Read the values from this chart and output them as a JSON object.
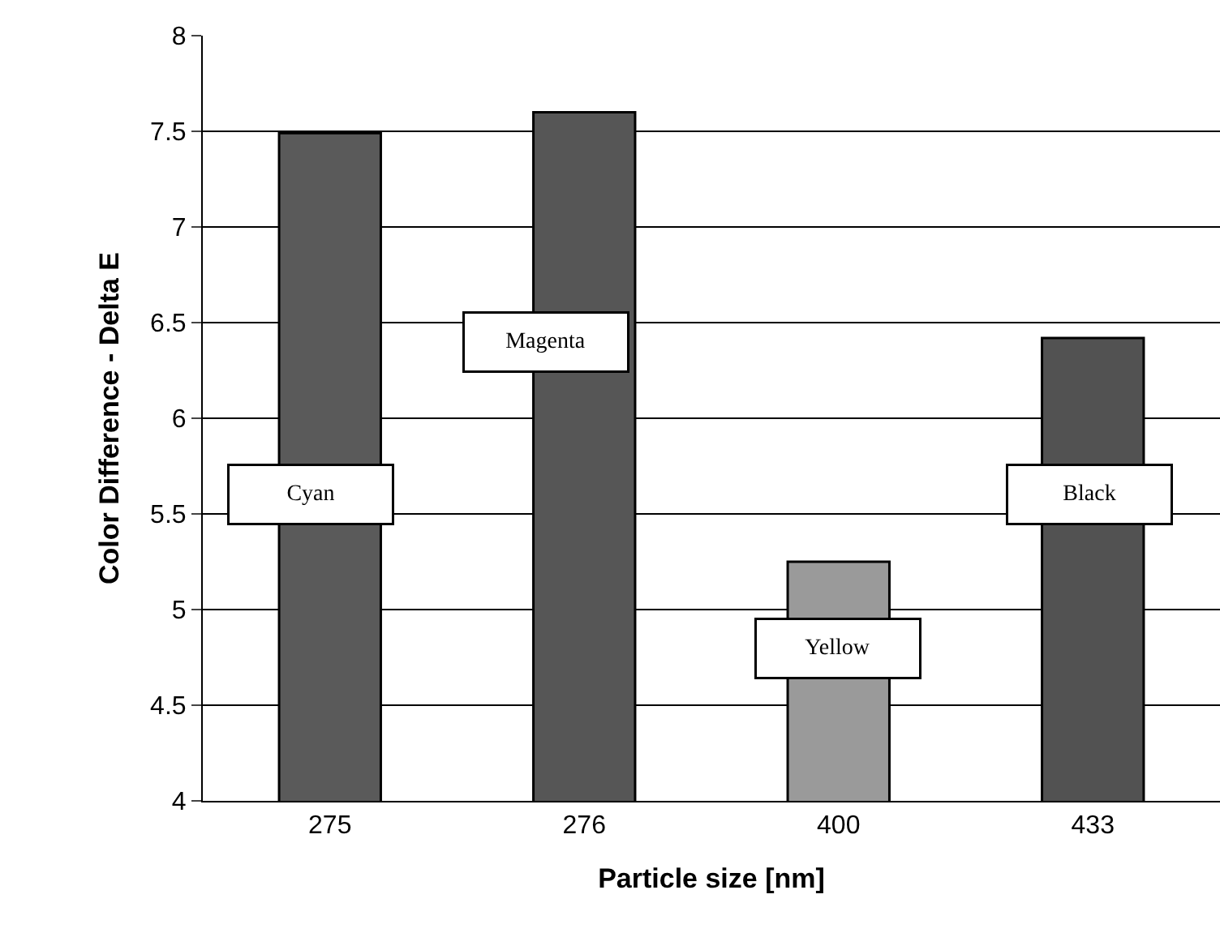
{
  "chart_data": {
    "type": "bar",
    "xlabel": "Particle size [nm]",
    "ylabel": "Color Difference - Delta E",
    "categories": [
      "275",
      "276",
      "400",
      "433"
    ],
    "series": [
      {
        "name": "Cyan",
        "color": "#5a5a5a",
        "values": [
          7.49,
          null,
          null,
          null
        ]
      },
      {
        "name": "Magenta",
        "color": "#565656",
        "values": [
          null,
          7.6,
          null,
          null
        ]
      },
      {
        "name": "Yellow",
        "color": "#9a9a9a",
        "values": [
          null,
          null,
          5.25,
          null
        ]
      },
      {
        "name": "Black",
        "color": "#525252",
        "values": [
          null,
          null,
          null,
          6.42
        ]
      }
    ],
    "ylim": [
      4,
      8
    ],
    "yticks": [
      4,
      4.5,
      5,
      5.5,
      6,
      6.5,
      7,
      7.5,
      8
    ],
    "grid": "y"
  }
}
